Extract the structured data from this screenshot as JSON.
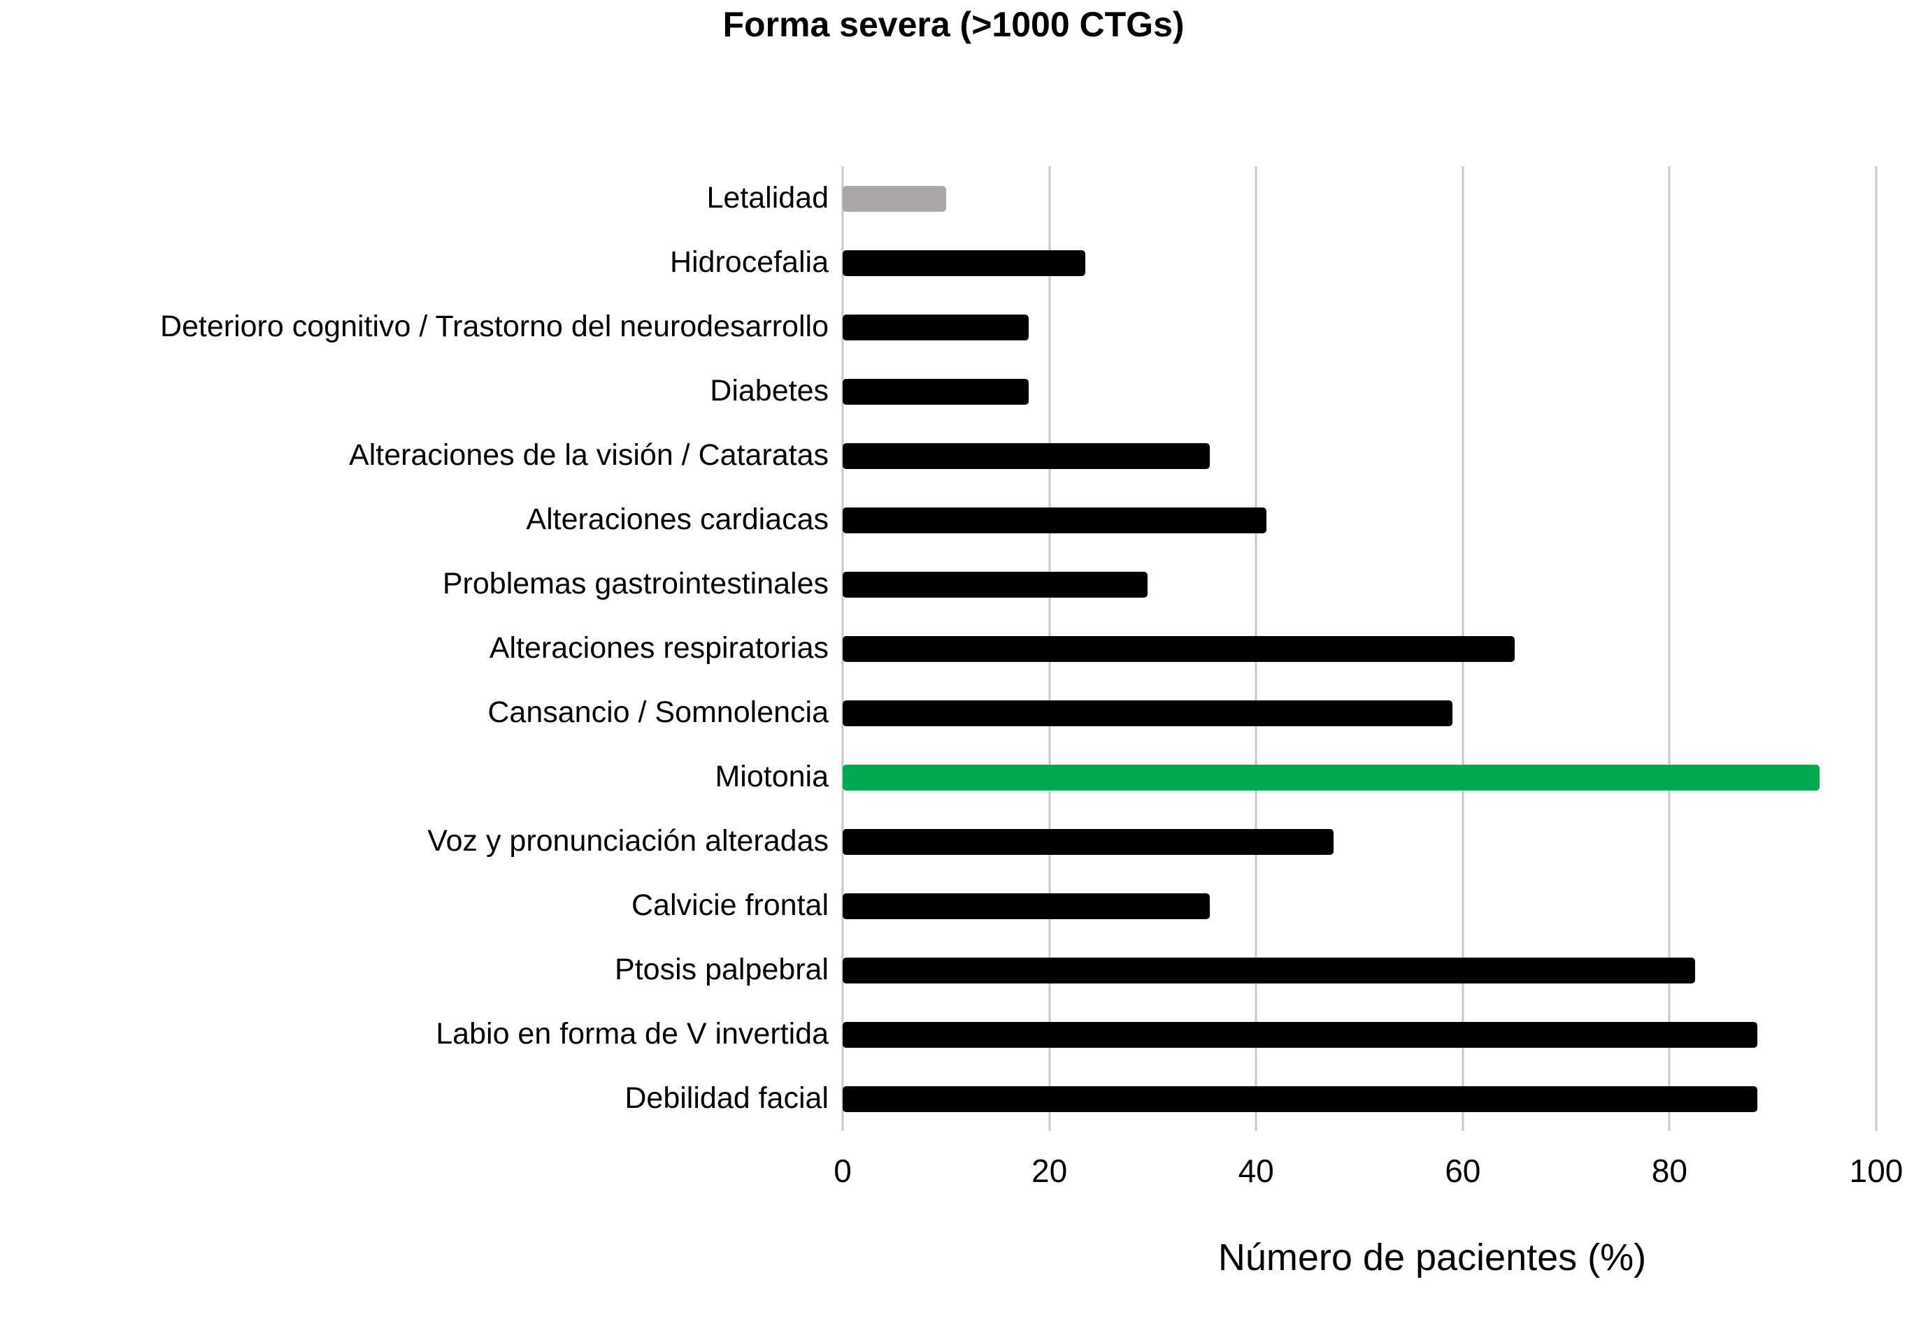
{
  "chart_data": {
    "type": "bar",
    "orientation": "horizontal",
    "title": "Forma severa (>1000 CTGs)",
    "xlabel": "Número de pacientes (%)",
    "ylabel": "",
    "xlim": [
      0,
      100
    ],
    "x_ticks": [
      0,
      20,
      40,
      60,
      80,
      100
    ],
    "grid": "vertical-gridlines-on",
    "legend": "none",
    "categories": [
      "Letalidad",
      "Hidrocefalia",
      "Deterioro cognitivo / Trastorno del neurodesarrollo",
      "Diabetes",
      "Alteraciones de la visión / Cataratas",
      "Alteraciones cardiacas",
      "Problemas gastrointestinales",
      "Alteraciones respiratorias",
      "Cansancio / Somnolencia",
      "Miotonia",
      "Voz y pronunciación alteradas",
      "Calvicie frontal",
      "Ptosis palpebral",
      "Labio en forma de V invertida",
      "Debilidad facial"
    ],
    "values": [
      10,
      23.5,
      18,
      18,
      35.5,
      41,
      29.5,
      65,
      59,
      94.5,
      47.5,
      35.5,
      82.5,
      88.5,
      88.5
    ],
    "bar_colors": [
      "gray",
      "black",
      "black",
      "black",
      "black",
      "black",
      "black",
      "black",
      "black",
      "green",
      "black",
      "black",
      "black",
      "black",
      "black"
    ],
    "palette": {
      "black": "#000000",
      "gray": "#aba7a7",
      "green": "#00a84e"
    },
    "gridline_color": "#c9c7c7"
  }
}
